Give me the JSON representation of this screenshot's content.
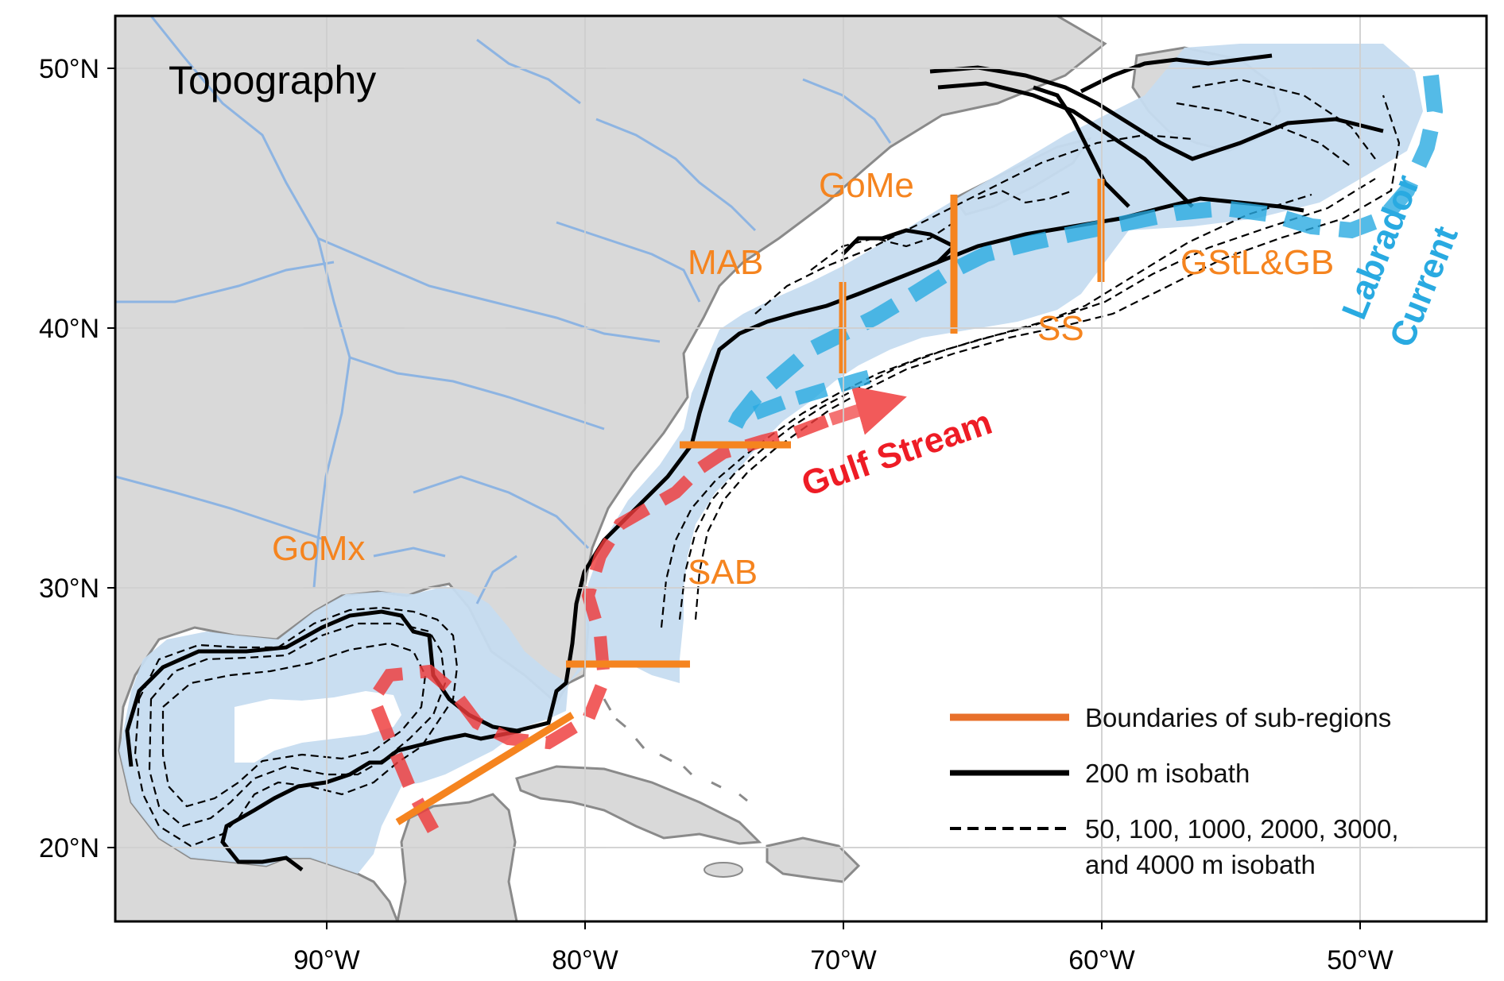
{
  "title": "Topography",
  "axes": {
    "lat_ticks": [
      "50°N",
      "40°N",
      "30°N",
      "20°N"
    ],
    "lon_ticks": [
      "90°W",
      "80°W",
      "70°W",
      "60°W",
      "50°W"
    ]
  },
  "regions": [
    {
      "label": "GoMx"
    },
    {
      "label": "SAB"
    },
    {
      "label": "MAB"
    },
    {
      "label": "GoMe"
    },
    {
      "label": "SS"
    },
    {
      "label": "GStL&GB"
    }
  ],
  "currents": {
    "gulf_stream": {
      "label": "Gulf Stream",
      "color": "#ee1c25"
    },
    "labrador": {
      "label_line1": "Labrador",
      "label_line2": "Current",
      "color": "#29aae1"
    }
  },
  "legend": {
    "items": [
      {
        "label": "Boundaries of sub-regions",
        "color": "#e8702a"
      },
      {
        "label": "200 m isobath",
        "color": "#000000"
      },
      {
        "label_line1": "50, 100, 1000, 2000, 3000,",
        "label_line2": "and 4000 m isobath",
        "color": "#000000"
      }
    ]
  },
  "colors": {
    "land": "#d9d9d9",
    "ocean": "#ffffff",
    "shelf_domain": "#c6dcf0",
    "rivers": "#8db4e2",
    "coastline": "#8a8a8a",
    "boundary": "#f5841f",
    "grid": "#cfcfcf"
  }
}
